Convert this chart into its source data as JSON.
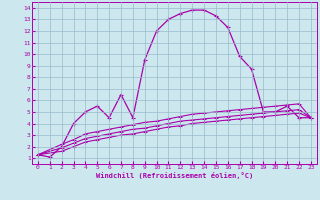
{
  "xlabel": "Windchill (Refroidissement éolien,°C)",
  "bg_color": "#cce8ee",
  "grid_color": "#99bbcc",
  "line_color": "#aa00aa",
  "xlim": [
    -0.5,
    23.5
  ],
  "ylim": [
    0.5,
    14.5
  ],
  "xticks": [
    0,
    1,
    2,
    3,
    4,
    5,
    6,
    7,
    8,
    9,
    10,
    11,
    12,
    13,
    14,
    15,
    16,
    17,
    18,
    19,
    20,
    21,
    22,
    23
  ],
  "yticks": [
    1,
    2,
    3,
    4,
    5,
    6,
    7,
    8,
    9,
    10,
    11,
    12,
    13,
    14
  ],
  "line1_x": [
    0,
    1,
    2,
    3,
    4,
    5,
    6,
    7,
    8,
    9,
    10,
    11,
    12,
    13,
    14,
    15,
    16,
    17,
    18,
    19,
    20,
    21,
    22,
    23
  ],
  "line1_y": [
    1.3,
    1.1,
    2.0,
    4.0,
    5.0,
    5.5,
    4.5,
    6.5,
    4.5,
    9.5,
    12.0,
    13.0,
    13.5,
    13.8,
    13.8,
    13.3,
    12.3,
    9.8,
    8.7,
    5.0,
    5.0,
    5.5,
    4.5,
    4.5
  ],
  "line2_x": [
    0,
    2,
    3,
    4,
    5,
    6,
    7,
    8,
    9,
    10,
    11,
    12,
    13,
    14,
    15,
    16,
    17,
    18,
    19,
    20,
    21,
    22,
    23
  ],
  "line2_y": [
    1.3,
    2.2,
    2.6,
    3.1,
    3.3,
    3.5,
    3.7,
    3.9,
    4.1,
    4.2,
    4.4,
    4.6,
    4.8,
    4.9,
    5.0,
    5.1,
    5.2,
    5.3,
    5.4,
    5.5,
    5.6,
    5.7,
    4.5
  ],
  "line3_x": [
    0,
    2,
    3,
    4,
    5,
    6,
    7,
    8,
    9,
    10,
    11,
    12,
    13,
    14,
    15,
    16,
    17,
    18,
    19,
    20,
    21,
    22,
    23
  ],
  "line3_y": [
    1.3,
    1.9,
    2.3,
    2.7,
    2.9,
    3.1,
    3.3,
    3.5,
    3.6,
    3.8,
    4.0,
    4.2,
    4.3,
    4.4,
    4.5,
    4.6,
    4.7,
    4.8,
    4.9,
    5.0,
    5.1,
    5.2,
    4.5
  ],
  "line4_x": [
    0,
    2,
    3,
    4,
    5,
    6,
    7,
    8,
    9,
    10,
    11,
    12,
    13,
    14,
    15,
    16,
    17,
    18,
    19,
    20,
    21,
    22,
    23
  ],
  "line4_y": [
    1.3,
    1.6,
    2.0,
    2.4,
    2.6,
    2.8,
    3.0,
    3.1,
    3.3,
    3.5,
    3.7,
    3.8,
    4.0,
    4.1,
    4.2,
    4.3,
    4.4,
    4.5,
    4.6,
    4.7,
    4.8,
    4.9,
    4.5
  ]
}
